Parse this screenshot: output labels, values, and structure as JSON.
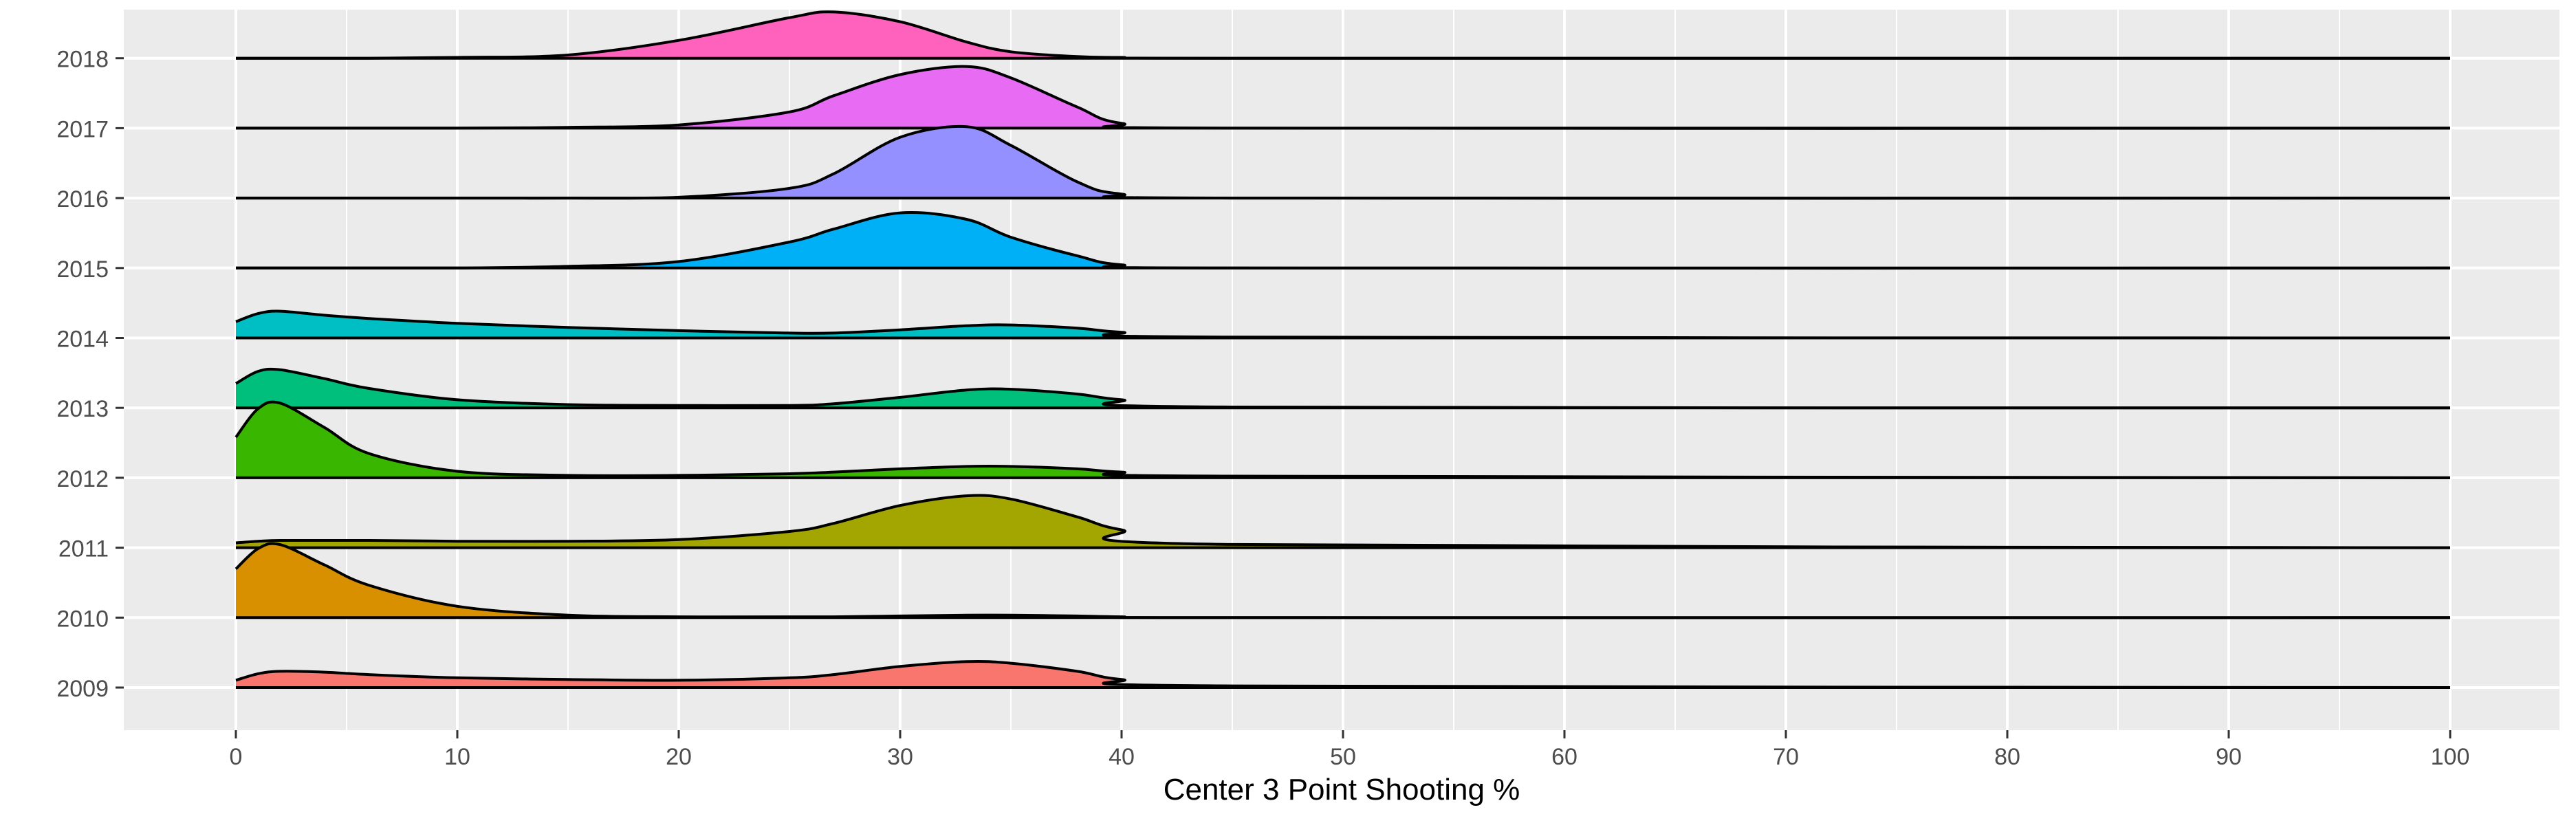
{
  "chart_data": {
    "type": "area",
    "subtype": "ridgeline",
    "title": "",
    "xlabel": "Center 3 Point Shooting %",
    "ylabel": "",
    "xlim": [
      -5,
      105
    ],
    "xticks": [
      0,
      10,
      20,
      30,
      40,
      50,
      60,
      70,
      80,
      90,
      100
    ],
    "categories": [
      "2009",
      "2010",
      "2011",
      "2012",
      "2013",
      "2014",
      "2015",
      "2016",
      "2017",
      "2018"
    ],
    "grid": true,
    "legend": "none",
    "colors": {
      "panel_background": "#ebebeb",
      "grid": "#ffffff",
      "outline": "#000000"
    },
    "x": [
      0,
      1,
      2,
      4,
      6,
      10,
      15,
      20,
      25,
      27,
      30,
      33,
      35,
      38,
      40,
      45,
      100
    ],
    "series": [
      {
        "name": "2009",
        "color": "#F8766D",
        "values": [
          0.09,
          0.17,
          0.2,
          0.19,
          0.16,
          0.12,
          0.1,
          0.09,
          0.12,
          0.16,
          0.26,
          0.32,
          0.3,
          0.2,
          0.1,
          0.02,
          0.0
        ]
      },
      {
        "name": "2010",
        "color": "#D89000",
        "values": [
          0.6,
          0.85,
          0.9,
          0.65,
          0.4,
          0.14,
          0.03,
          0.01,
          0.01,
          0.01,
          0.02,
          0.03,
          0.03,
          0.02,
          0.01,
          0.0,
          0.0
        ]
      },
      {
        "name": "2011",
        "color": "#A3A500",
        "values": [
          0.06,
          0.08,
          0.09,
          0.09,
          0.09,
          0.08,
          0.08,
          0.1,
          0.2,
          0.3,
          0.52,
          0.64,
          0.6,
          0.38,
          0.22,
          0.04,
          0.0
        ]
      },
      {
        "name": "2012",
        "color": "#39B600",
        "values": [
          0.5,
          0.85,
          0.92,
          0.62,
          0.3,
          0.08,
          0.03,
          0.03,
          0.05,
          0.07,
          0.11,
          0.14,
          0.14,
          0.11,
          0.07,
          0.02,
          0.0
        ]
      },
      {
        "name": "2013",
        "color": "#00BF7D",
        "values": [
          0.3,
          0.45,
          0.47,
          0.36,
          0.24,
          0.1,
          0.04,
          0.03,
          0.03,
          0.05,
          0.13,
          0.22,
          0.23,
          0.17,
          0.1,
          0.01,
          0.0
        ]
      },
      {
        "name": "2014",
        "color": "#00BFC4",
        "values": [
          0.2,
          0.3,
          0.33,
          0.28,
          0.24,
          0.18,
          0.13,
          0.09,
          0.06,
          0.06,
          0.1,
          0.15,
          0.16,
          0.12,
          0.07,
          0.01,
          0.0
        ]
      },
      {
        "name": "2015",
        "color": "#00B0F6",
        "values": [
          0.0,
          0.0,
          0.0,
          0.0,
          0.0,
          0.0,
          0.02,
          0.08,
          0.32,
          0.48,
          0.68,
          0.6,
          0.38,
          0.15,
          0.04,
          0.0,
          0.0
        ]
      },
      {
        "name": "2016",
        "color": "#9590FF",
        "values": [
          0.0,
          0.0,
          0.0,
          0.0,
          0.0,
          0.0,
          0.0,
          0.01,
          0.12,
          0.3,
          0.75,
          0.88,
          0.65,
          0.2,
          0.05,
          0.0,
          0.0
        ]
      },
      {
        "name": "2017",
        "color": "#E76BF3",
        "values": [
          0.0,
          0.0,
          0.0,
          0.0,
          0.0,
          0.0,
          0.01,
          0.04,
          0.2,
          0.4,
          0.66,
          0.76,
          0.62,
          0.26,
          0.06,
          0.0,
          0.0
        ]
      },
      {
        "name": "2018",
        "color": "#FF62BC",
        "values": [
          0.0,
          0.0,
          0.0,
          0.0,
          0.0,
          0.01,
          0.04,
          0.22,
          0.5,
          0.57,
          0.45,
          0.2,
          0.08,
          0.02,
          0.01,
          0.0,
          0.0
        ]
      }
    ]
  }
}
